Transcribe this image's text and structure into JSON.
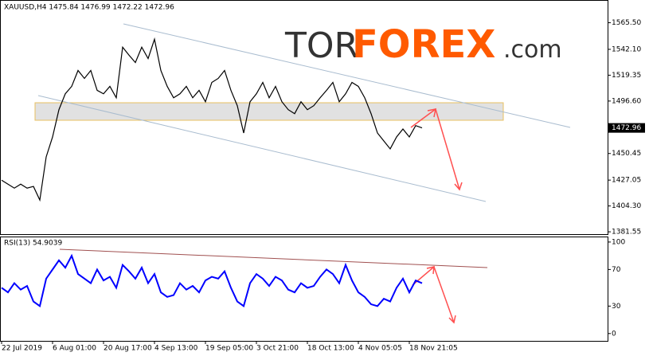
{
  "logo": {
    "prefix": "TOR",
    "accent": "FOREX",
    "suffix": ".com"
  },
  "chart_data": [
    {
      "type": "line",
      "title": "XAUUSD,H4  1475.84 1476.99 1472.22 1472.96",
      "categories": [
        "22 Jul 2019",
        null,
        null,
        null,
        null,
        null,
        null,
        null,
        "6 Aug 01:00",
        null,
        null,
        null,
        null,
        null,
        null,
        null,
        "20 Aug 17:00",
        null,
        null,
        null,
        null,
        null,
        null,
        null,
        "4 Sep 13:00",
        null,
        null,
        null,
        null,
        null,
        null,
        null,
        "19 Sep 05:00",
        null,
        null,
        null,
        null,
        null,
        null,
        null,
        "3 Oct 21:00",
        null,
        null,
        null,
        null,
        null,
        null,
        null,
        "18 Oct 13:00",
        null,
        null,
        null,
        null,
        null,
        null,
        null,
        "4 Nov 05:05",
        null,
        null,
        null,
        null,
        null,
        null,
        null,
        "18 Nov 21:05",
        null,
        null
      ],
      "series": [
        {
          "name": "XAUUSD,H4",
          "color": "#000000",
          "values": [
            1427,
            1423.5,
            1420,
            1423.5,
            1420,
            1421.5,
            1409.5,
            1447.5,
            1465,
            1489,
            1503,
            1509.5,
            1523.5,
            1516.5,
            1523.5,
            1506,
            1503,
            1509.5,
            1499.5,
            1544,
            1537,
            1530.5,
            1544,
            1534,
            1551,
            1523.5,
            1509.5,
            1499.5,
            1503,
            1509.5,
            1499.5,
            1506,
            1496,
            1513,
            1516.5,
            1523.5,
            1506,
            1492.5,
            1468.5,
            1496,
            1503,
            1513,
            1499.5,
            1509.5,
            1496,
            1489,
            1485.5,
            1496,
            1489,
            1492.5,
            1499.5,
            1506,
            1513,
            1496,
            1503,
            1513,
            1509.5,
            1499.5,
            1485.5,
            1468.5,
            1461.5,
            1454.5,
            1465,
            1472,
            1465,
            1475,
            1473
          ]
        }
      ],
      "last_price": 1472.96,
      "ylim": [
        1378.8,
        1585.5
      ],
      "yticks": [
        {
          "value": 1381.55,
          "label": "1381.55"
        },
        {
          "value": 1404.3,
          "label": "1404.30"
        },
        {
          "value": 1427.05,
          "label": "1427.05"
        },
        {
          "value": 1450.45,
          "label": "1450.45"
        },
        {
          "value": 1496.6,
          "label": "1496.60"
        },
        {
          "value": 1519.35,
          "label": "1519.35"
        },
        {
          "value": 1542.1,
          "label": "1542.10"
        },
        {
          "value": 1565.5,
          "label": "1565.50"
        }
      ]
    },
    {
      "type": "line",
      "title": "RSI(13) 54.9039",
      "series": [
        {
          "name": "RSI(13)",
          "color": "#0000ff",
          "values": [
            50,
            45,
            55,
            48,
            52,
            35,
            30,
            60,
            70,
            80,
            72,
            85,
            65,
            60,
            55,
            70,
            58,
            62,
            50,
            75,
            68,
            60,
            72,
            55,
            65,
            45,
            40,
            42,
            55,
            48,
            52,
            45,
            58,
            62,
            60,
            68,
            50,
            35,
            30,
            55,
            65,
            60,
            52,
            62,
            58,
            48,
            45,
            55,
            50,
            52,
            62,
            70,
            65,
            55,
            75,
            58,
            45,
            40,
            32,
            30,
            38,
            35,
            50,
            60,
            45,
            58,
            55
          ]
        }
      ],
      "ylim": [
        -8,
        106
      ],
      "yticks": [
        0,
        30,
        70,
        100
      ]
    }
  ]
}
